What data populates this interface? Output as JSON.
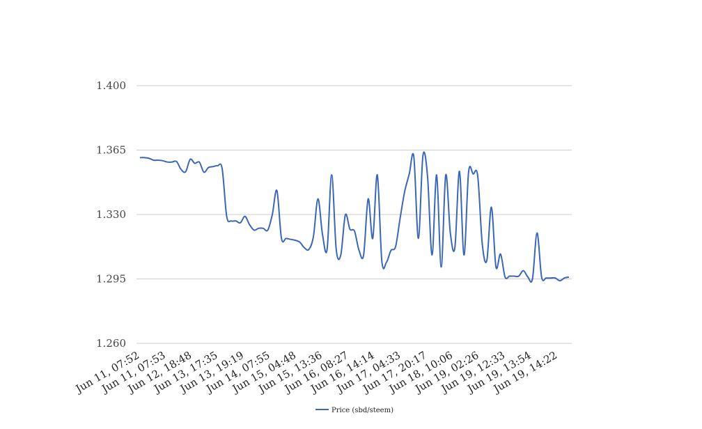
{
  "chart_data": {
    "type": "line",
    "title": "",
    "xlabel": "",
    "ylabel": "",
    "ylim": [
      1.26,
      1.4
    ],
    "yticks": [
      "1.400",
      "1.365",
      "1.330",
      "1.295",
      "1.260"
    ],
    "grid": "horizontal",
    "legend_position": "bottom-center",
    "xtick_labels": [
      "Jun 11, 07:52",
      "Jun 11, 07:53",
      "Jun 12, 18:48",
      "Jun 13, 17:35",
      "Jun 13, 19:19",
      "Jun 14, 07:55",
      "Jun 15, 04:48",
      "Jun 15, 13:36",
      "Jun 16, 08:27",
      "Jun 16, 14:14",
      "Jun 17, 04:33",
      "Jun 17, 20:17",
      "Jun 18, 10:06",
      "Jun 19, 02:26",
      "Jun 19, 12:33",
      "Jun 19, 13:54",
      "Jun 19, 14:22"
    ],
    "series": [
      {
        "name": "Price (sbd/steem)",
        "color": "#3a66b7",
        "values": [
          1.3609,
          1.3609,
          1.3605,
          1.3595,
          1.3595,
          1.3592,
          1.3585,
          1.3585,
          1.3588,
          1.3545,
          1.3532,
          1.36,
          1.3578,
          1.3585,
          1.353,
          1.3555,
          1.356,
          1.3565,
          1.355,
          1.329,
          1.3265,
          1.3265,
          1.3255,
          1.329,
          1.3245,
          1.3215,
          1.3225,
          1.3225,
          1.3215,
          1.33,
          1.343,
          1.317,
          1.317,
          1.3165,
          1.316,
          1.315,
          1.312,
          1.311,
          1.318,
          1.3385,
          1.319,
          1.311,
          1.3515,
          1.311,
          1.308,
          1.3298,
          1.322,
          1.321,
          1.3105,
          1.308,
          1.3385,
          1.317,
          1.3515,
          1.3045,
          1.304,
          1.3105,
          1.3125,
          1.328,
          1.3425,
          1.352,
          1.3615,
          1.317,
          1.362,
          1.351,
          1.308,
          1.3515,
          1.3015,
          1.3515,
          1.32,
          1.312,
          1.3535,
          1.308,
          1.353,
          1.352,
          1.351,
          1.314,
          1.305,
          1.334,
          1.3015,
          1.3085,
          1.296,
          1.2965,
          1.2965,
          1.2965,
          1.2995,
          1.296,
          1.295,
          1.32,
          1.296,
          1.2955,
          1.2955,
          1.2955,
          1.294,
          1.2955,
          1.296
        ]
      }
    ]
  }
}
